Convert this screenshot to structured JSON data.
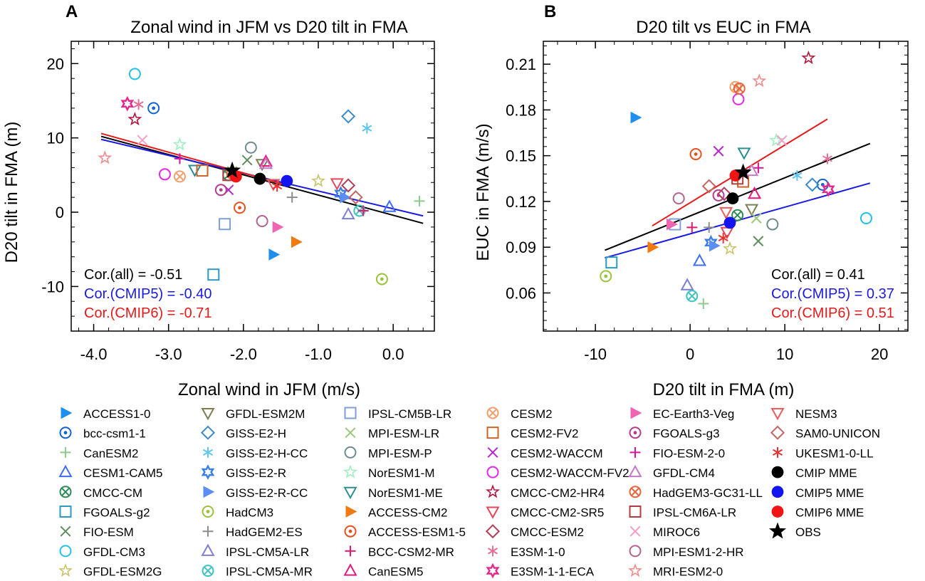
{
  "colors": {
    "cmip": "#000000",
    "cmip5": "#1a1ae6",
    "cmip6": "#e61a1a"
  },
  "chart_data": [
    {
      "panel": "A",
      "type": "scatter",
      "title": "Zonal wind in JFM vs D20 tilt in FMA",
      "xlabel": "Zonal wind in JFM (m/s)",
      "ylabel": "D20 tilt in FMA (m)",
      "xlim": [
        -4.3,
        0.55
      ],
      "ylim": [
        -16,
        23
      ],
      "xticks": [
        -4.0,
        -3.0,
        -2.0,
        -1.0,
        0.0
      ],
      "xtick_labels": [
        "-4.0",
        "-3.0",
        "-2.0",
        "-1.0",
        "0.0"
      ],
      "yticks": [
        -10,
        0,
        10,
        20
      ],
      "ytick_labels": [
        "-10",
        "0",
        "10",
        "20"
      ],
      "correlations": [
        {
          "label": "Cor.(all) = -0.51",
          "group": "cmip"
        },
        {
          "label": "Cor.(CMIP5) = -0.40",
          "group": "cmip5"
        },
        {
          "label": "Cor.(CMIP6) = -0.71",
          "group": "cmip6"
        }
      ],
      "regression_lines": [
        {
          "group": "cmip",
          "x": [
            -3.9,
            0.4
          ],
          "y": [
            10.2,
            -1.5
          ]
        },
        {
          "group": "cmip5",
          "x": [
            -3.9,
            0.4
          ],
          "y": [
            9.8,
            -0.5
          ]
        },
        {
          "group": "cmip6",
          "x": [
            -3.9,
            -1.4
          ],
          "y": [
            10.6,
            3.6
          ]
        }
      ],
      "points": [
        {
          "model": "ACCESS1-0",
          "x": -1.6,
          "y": -5.7
        },
        {
          "model": "bcc-csm1-1",
          "x": -3.2,
          "y": 14.0
        },
        {
          "model": "CanESM2",
          "x": 0.35,
          "y": 1.5
        },
        {
          "model": "CESM1-CAM5",
          "x": -0.05,
          "y": 0.7
        },
        {
          "model": "CMCC-CM",
          "x": -2.2,
          "y": 5.0
        },
        {
          "model": "FGOALS-g2",
          "x": -2.4,
          "y": -8.4
        },
        {
          "model": "FIO-ESM",
          "x": -1.95,
          "y": 7.0
        },
        {
          "model": "GFDL-CM3",
          "x": -3.45,
          "y": 18.6
        },
        {
          "model": "GFDL-ESM2G",
          "x": -1.0,
          "y": 4.2
        },
        {
          "model": "GFDL-ESM2M",
          "x": -1.75,
          "y": 6.5
        },
        {
          "model": "GISS-E2-H",
          "x": -0.6,
          "y": 12.9
        },
        {
          "model": "GISS-E2-H-CC",
          "x": -0.35,
          "y": 11.3
        },
        {
          "model": "GISS-E2-R",
          "x": -0.7,
          "y": 2.5
        },
        {
          "model": "GISS-E2-R-CC",
          "x": -0.65,
          "y": 2.0
        },
        {
          "model": "HadCM3",
          "x": -0.15,
          "y": -9.0
        },
        {
          "model": "HadGEM2-ES",
          "x": -1.35,
          "y": 2.0
        },
        {
          "model": "IPSL-CM5A-LR",
          "x": -0.6,
          "y": -0.3
        },
        {
          "model": "IPSL-CM5A-MR",
          "x": -0.45,
          "y": 0.2
        },
        {
          "model": "IPSL-CM5B-LR",
          "x": -2.25,
          "y": -1.6
        },
        {
          "model": "MPI-ESM-LR",
          "x": -2.15,
          "y": 5.5
        },
        {
          "model": "MPI-ESM-P",
          "x": -1.9,
          "y": 8.7
        },
        {
          "model": "NorESM1-M",
          "x": -2.85,
          "y": 9.1
        },
        {
          "model": "NorESM1-ME",
          "x": -2.65,
          "y": 5.7
        },
        {
          "model": "ACCESS-CM2",
          "x": -1.3,
          "y": -4.0
        },
        {
          "model": "ACCESS-ESM1-5",
          "x": -2.05,
          "y": 0.6
        },
        {
          "model": "BCC-CSM2-MR",
          "x": -0.4,
          "y": 0.2
        },
        {
          "model": "CanESM5",
          "x": -1.7,
          "y": 6.8
        },
        {
          "model": "CESM2",
          "x": -2.85,
          "y": 4.8
        },
        {
          "model": "CESM2-FV2",
          "x": -2.55,
          "y": 5.6
        },
        {
          "model": "CESM2-WACCM",
          "x": -2.2,
          "y": 3.0
        },
        {
          "model": "CESM2-WACCM-FV2",
          "x": -3.05,
          "y": 5.1
        },
        {
          "model": "CMCC-CM2-HR4",
          "x": -3.45,
          "y": 12.5
        },
        {
          "model": "CMCC-CM2-SR5",
          "x": -0.75,
          "y": 3.9
        },
        {
          "model": "CMCC-ESM2",
          "x": -0.6,
          "y": 3.6
        },
        {
          "model": "E3SM-1-0",
          "x": -3.4,
          "y": 14.5
        },
        {
          "model": "E3SM-1-1-ECA",
          "x": -3.55,
          "y": 14.6
        },
        {
          "model": "EC-Earth3-Veg",
          "x": -1.55,
          "y": -2.0
        },
        {
          "model": "FGOALS-g3",
          "x": -2.3,
          "y": 3.0
        },
        {
          "model": "FIO-ESM-2-0",
          "x": -2.85,
          "y": 7.2
        },
        {
          "model": "GFDL-CM4",
          "x": -1.7,
          "y": 6.5
        },
        {
          "model": "HadGEM3-GC31-LL",
          "x": -2.15,
          "y": 5.2
        },
        {
          "model": "IPSL-CM6A-LR",
          "x": -2.2,
          "y": 5.0
        },
        {
          "model": "MIROC6",
          "x": -3.35,
          "y": 9.7
        },
        {
          "model": "MPI-ESM1-2-HR",
          "x": -1.75,
          "y": -1.2
        },
        {
          "model": "MRI-ESM2-0",
          "x": -3.85,
          "y": 7.3
        },
        {
          "model": "NESM3",
          "x": -1.6,
          "y": 3.8
        },
        {
          "model": "SAM0-UNICON",
          "x": -0.5,
          "y": 2.0
        },
        {
          "model": "UKESM1-0-LL",
          "x": -1.55,
          "y": 3.5
        },
        {
          "model": "CMIP MME",
          "x": -1.78,
          "y": 4.5
        },
        {
          "model": "CMIP5 MME",
          "x": -1.42,
          "y": 4.2
        },
        {
          "model": "CMIP6 MME",
          "x": -2.1,
          "y": 4.8
        },
        {
          "model": "OBS",
          "x": -2.15,
          "y": 5.6
        }
      ]
    },
    {
      "panel": "B",
      "type": "scatter",
      "title": "D20 tilt vs EUC in FMA",
      "xlabel": "D20 tilt in FMA (m)",
      "ylabel": "EUC in FMA (m/s)",
      "xlim": [
        -15.5,
        23
      ],
      "ylim": [
        0.035,
        0.225
      ],
      "xticks": [
        -10,
        0,
        10,
        20
      ],
      "xtick_labels": [
        "-10",
        "0",
        "10",
        "20"
      ],
      "yticks": [
        0.06,
        0.09,
        0.12,
        0.15,
        0.18,
        0.21
      ],
      "ytick_labels": [
        "0.06",
        "0.09",
        "0.12",
        "0.15",
        "0.18",
        "0.21"
      ],
      "correlations": [
        {
          "label": "Cor.(all) = ",
          "value": "0.41",
          "group": "cmip"
        },
        {
          "label": "Cor.(CMIP5) = ",
          "value": "0.37",
          "group": "cmip5"
        },
        {
          "label": "Cor.(CMIP6) = ",
          "value": "0.51",
          "group": "cmip6"
        }
      ],
      "regression_lines": [
        {
          "group": "cmip",
          "x": [
            -9,
            19
          ],
          "y": [
            0.088,
            0.158
          ]
        },
        {
          "group": "cmip5",
          "x": [
            -9,
            19
          ],
          "y": [
            0.083,
            0.132
          ]
        },
        {
          "group": "cmip6",
          "x": [
            -4,
            14.5
          ],
          "y": [
            0.104,
            0.174
          ]
        }
      ],
      "points": [
        {
          "model": "ACCESS1-0",
          "x": -5.8,
          "y": 0.175
        },
        {
          "model": "bcc-csm1-1",
          "x": 14.0,
          "y": 0.131
        },
        {
          "model": "CanESM2",
          "x": 1.4,
          "y": 0.053
        },
        {
          "model": "CESM1-CAM5",
          "x": 1.0,
          "y": 0.081
        },
        {
          "model": "CMCC-CM",
          "x": 5.0,
          "y": 0.111
        },
        {
          "model": "FGOALS-g2",
          "x": -8.3,
          "y": 0.08
        },
        {
          "model": "FIO-ESM",
          "x": 7.2,
          "y": 0.094
        },
        {
          "model": "GFDL-CM3",
          "x": 18.6,
          "y": 0.109
        },
        {
          "model": "GFDL-ESM2G",
          "x": 4.2,
          "y": 0.089
        },
        {
          "model": "GFDL-ESM2M",
          "x": 6.5,
          "y": 0.115
        },
        {
          "model": "GISS-E2-H",
          "x": 12.9,
          "y": 0.131
        },
        {
          "model": "GISS-E2-H-CC",
          "x": 11.3,
          "y": 0.137
        },
        {
          "model": "GISS-E2-R",
          "x": 2.2,
          "y": 0.093
        },
        {
          "model": "GISS-E2-R-CC",
          "x": 2.5,
          "y": 0.091
        },
        {
          "model": "HadCM3",
          "x": -8.9,
          "y": 0.071
        },
        {
          "model": "HadGEM2-ES",
          "x": 2.0,
          "y": 0.103
        },
        {
          "model": "IPSL-CM5A-LR",
          "x": -0.3,
          "y": 0.065
        },
        {
          "model": "IPSL-CM5A-MR",
          "x": 0.2,
          "y": 0.058
        },
        {
          "model": "IPSL-CM5B-LR",
          "x": -1.6,
          "y": 0.105
        },
        {
          "model": "MPI-ESM-LR",
          "x": 7.0,
          "y": 0.109
        },
        {
          "model": "MPI-ESM-P",
          "x": 8.7,
          "y": 0.105
        },
        {
          "model": "NorESM1-M",
          "x": 9.1,
          "y": 0.16
        },
        {
          "model": "NorESM1-ME",
          "x": 5.7,
          "y": 0.152
        },
        {
          "model": "ACCESS-CM2",
          "x": -4.0,
          "y": 0.09
        },
        {
          "model": "ACCESS-ESM1-5",
          "x": 0.6,
          "y": 0.151
        },
        {
          "model": "BCC-CSM2-MR",
          "x": 0.2,
          "y": 0.103
        },
        {
          "model": "CanESM5",
          "x": 6.8,
          "y": 0.125
        },
        {
          "model": "CESM2",
          "x": 4.8,
          "y": 0.195
        },
        {
          "model": "CESM2-FV2",
          "x": 5.6,
          "y": 0.133
        },
        {
          "model": "CESM2-WACCM",
          "x": 3.0,
          "y": 0.153
        },
        {
          "model": "CESM2-WACCM-FV2",
          "x": 5.1,
          "y": 0.187
        },
        {
          "model": "CMCC-CM2-HR4",
          "x": 12.5,
          "y": 0.214
        },
        {
          "model": "CMCC-CM2-SR5",
          "x": 3.9,
          "y": 0.1
        },
        {
          "model": "CMCC-ESM2",
          "x": 3.6,
          "y": 0.125
        },
        {
          "model": "E3SM-1-0",
          "x": 14.5,
          "y": 0.148
        },
        {
          "model": "E3SM-1-1-ECA",
          "x": 14.6,
          "y": 0.128
        },
        {
          "model": "EC-Earth3-Veg",
          "x": -2.0,
          "y": 0.105
        },
        {
          "model": "FGOALS-g3",
          "x": 3.0,
          "y": 0.124
        },
        {
          "model": "FIO-ESM-2-0",
          "x": 7.2,
          "y": 0.142
        },
        {
          "model": "GFDL-CM4",
          "x": 6.5,
          "y": 0.14
        },
        {
          "model": "HadGEM3-GC31-LL",
          "x": 5.2,
          "y": 0.194
        },
        {
          "model": "IPSL-CM6A-LR",
          "x": 5.0,
          "y": 0.135
        },
        {
          "model": "MIROC6",
          "x": 9.7,
          "y": 0.16
        },
        {
          "model": "MPI-ESM1-2-HR",
          "x": -1.2,
          "y": 0.122
        },
        {
          "model": "MRI-ESM2-0",
          "x": 7.3,
          "y": 0.199
        },
        {
          "model": "NESM3",
          "x": 3.8,
          "y": 0.113
        },
        {
          "model": "SAM0-UNICON",
          "x": 2.0,
          "y": 0.13
        },
        {
          "model": "UKESM1-0-LL",
          "x": 3.5,
          "y": 0.096
        },
        {
          "model": "CMIP MME",
          "x": 4.5,
          "y": 0.122
        },
        {
          "model": "CMIP5 MME",
          "x": 4.2,
          "y": 0.106
        },
        {
          "model": "CMIP6 MME",
          "x": 4.8,
          "y": 0.137
        },
        {
          "model": "OBS",
          "x": 5.6,
          "y": 0.139
        }
      ]
    }
  ],
  "legend": [
    {
      "label": "ACCESS1-0",
      "marker": "tri-right",
      "color": "#1f8fef"
    },
    {
      "label": "bcc-csm1-1",
      "marker": "circle-dot",
      "color": "#1464d2"
    },
    {
      "label": "CanESM2",
      "marker": "plus",
      "color": "#8fc98f"
    },
    {
      "label": "CESM1-CAM5",
      "marker": "tri-up",
      "color": "#3f6ff0"
    },
    {
      "label": "CMCC-CM",
      "marker": "circle-x",
      "color": "#2e8b57"
    },
    {
      "label": "FGOALS-g2",
      "marker": "square",
      "color": "#2b9bc2"
    },
    {
      "label": "FIO-ESM",
      "marker": "x",
      "color": "#5e8d5e"
    },
    {
      "label": "GFDL-CM3",
      "marker": "circle",
      "color": "#22c0ea"
    },
    {
      "label": "GFDL-ESM2G",
      "marker": "star",
      "color": "#c7c46a"
    },
    {
      "label": "GFDL-ESM2M",
      "marker": "tri-down",
      "color": "#7e7e55"
    },
    {
      "label": "GISS-E2-H",
      "marker": "diamond",
      "color": "#3b8bc7"
    },
    {
      "label": "GISS-E2-H-CC",
      "marker": "asterisk",
      "color": "#5ec6f0"
    },
    {
      "label": "GISS-E2-R",
      "marker": "star6",
      "color": "#3b7de8"
    },
    {
      "label": "GISS-E2-R-CC",
      "marker": "tri-right",
      "color": "#5b8ef0"
    },
    {
      "label": "HadCM3",
      "marker": "circle-dot",
      "color": "#9ac33a"
    },
    {
      "label": "HadGEM2-ES",
      "marker": "plus",
      "color": "#8c8c8c"
    },
    {
      "label": "IPSL-CM5A-LR",
      "marker": "tri-up",
      "color": "#7e7ed0"
    },
    {
      "label": "IPSL-CM5A-MR",
      "marker": "circle-x",
      "color": "#3ec3c0"
    },
    {
      "label": "IPSL-CM5B-LR",
      "marker": "square",
      "color": "#7ea0d8"
    },
    {
      "label": "MPI-ESM-LR",
      "marker": "x",
      "color": "#9ac87a"
    },
    {
      "label": "MPI-ESM-P",
      "marker": "circle",
      "color": "#6e8c8c"
    },
    {
      "label": "NorESM1-M",
      "marker": "star",
      "color": "#9ef0c0"
    },
    {
      "label": "NorESM1-ME",
      "marker": "tri-down",
      "color": "#2e8e8e"
    },
    {
      "label": "ACCESS-CM2",
      "marker": "tri-right",
      "color": "#f07a10"
    },
    {
      "label": "ACCESS-ESM1-5",
      "marker": "circle-dot",
      "color": "#e8501e"
    },
    {
      "label": "BCC-CSM2-MR",
      "marker": "plus",
      "color": "#e6196e"
    },
    {
      "label": "CanESM5",
      "marker": "tri-up",
      "color": "#e6197e"
    },
    {
      "label": "CESM2",
      "marker": "circle-x",
      "color": "#f0a070"
    },
    {
      "label": "CESM2-FV2",
      "marker": "square",
      "color": "#c86428"
    },
    {
      "label": "CESM2-WACCM",
      "marker": "x",
      "color": "#b428c8"
    },
    {
      "label": "CESM2-WACCM-FV2",
      "marker": "circle",
      "color": "#e628e6"
    },
    {
      "label": "CMCC-CM2-HR4",
      "marker": "star",
      "color": "#b4143c"
    },
    {
      "label": "CMCC-CM2-SR5",
      "marker": "tri-down",
      "color": "#e6465a"
    },
    {
      "label": "CMCC-ESM2",
      "marker": "diamond",
      "color": "#b43c5a"
    },
    {
      "label": "E3SM-1-0",
      "marker": "asterisk",
      "color": "#e66e96"
    },
    {
      "label": "E3SM-1-1-ECA",
      "marker": "star6",
      "color": "#e6288c"
    },
    {
      "label": "EC-Earth3-Veg",
      "marker": "tri-right",
      "color": "#f064b4"
    },
    {
      "label": "FGOALS-g3",
      "marker": "circle-dot",
      "color": "#b43c8c"
    },
    {
      "label": "FIO-ESM-2-0",
      "marker": "plus",
      "color": "#d214a0"
    },
    {
      "label": "GFDL-CM4",
      "marker": "tri-up",
      "color": "#c878c8"
    },
    {
      "label": "HadGEM3-GC31-LL",
      "marker": "circle-x",
      "color": "#e6643c"
    },
    {
      "label": "IPSL-CM6A-LR",
      "marker": "square",
      "color": "#b43c3c"
    },
    {
      "label": "MIROC6",
      "marker": "x",
      "color": "#f0a0c8"
    },
    {
      "label": "MPI-ESM1-2-HR",
      "marker": "circle",
      "color": "#b4648c"
    },
    {
      "label": "MRI-ESM2-0",
      "marker": "star",
      "color": "#f08c8c"
    },
    {
      "label": "NESM3",
      "marker": "tri-down",
      "color": "#f05a5a"
    },
    {
      "label": "SAM0-UNICON",
      "marker": "diamond",
      "color": "#c86464"
    },
    {
      "label": "UKESM1-0-LL",
      "marker": "asterisk",
      "color": "#e63232"
    },
    {
      "label": "CMIP   MME",
      "marker": "dot",
      "color": "#000000"
    },
    {
      "label": "CMIP5 MME",
      "marker": "dot",
      "color": "#1414f0"
    },
    {
      "label": "CMIP6 MME",
      "marker": "dot",
      "color": "#f01414"
    },
    {
      "label": "OBS",
      "marker": "bigstar",
      "color": "#000000"
    }
  ]
}
